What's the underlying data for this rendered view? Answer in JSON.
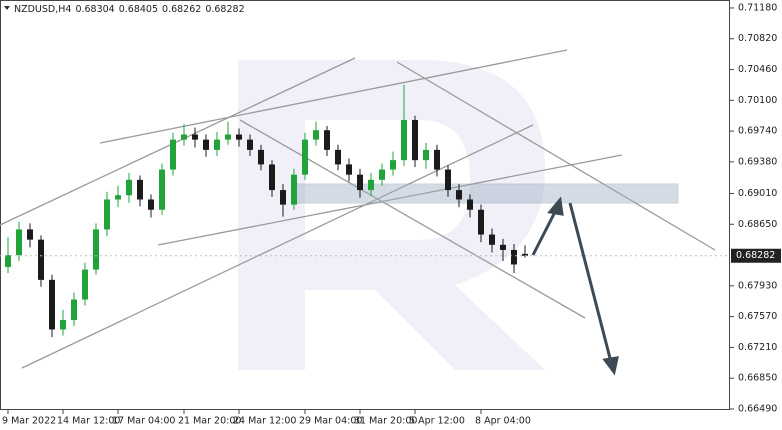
{
  "header": {
    "symbol": "NZDUSD,H4"
  },
  "chart_data": {
    "type": "candlestick",
    "categories": [
      "9 Mar 2022",
      null,
      null,
      null,
      null,
      "14 Mar 12:00",
      null,
      null,
      null,
      null,
      "17 Mar 04:00",
      null,
      null,
      null,
      null,
      null,
      "21 Mar 20:00",
      null,
      null,
      null,
      null,
      "24 Mar 12:00",
      null,
      null,
      null,
      null,
      null,
      "29 Mar 04:00",
      null,
      null,
      null,
      null,
      "31 Mar 20:00",
      null,
      null,
      null,
      null,
      "5 Apr 12:00",
      null,
      null,
      null,
      null,
      null,
      "8 Apr 04:00",
      null,
      null,
      null,
      null
    ],
    "open": [
      0.6815,
      0.6829,
      0.6859,
      0.6847,
      0.68,
      0.6742,
      0.6753,
      0.6777,
      0.6812,
      0.6859,
      0.6894,
      0.6899,
      0.6917,
      0.6894,
      0.6882,
      0.6929,
      0.6964,
      0.697,
      0.6964,
      0.6952,
      0.6964,
      0.697,
      0.6964,
      0.6952,
      0.6935,
      0.6905,
      0.6888,
      0.6923,
      0.6964,
      0.6975,
      0.6952,
      0.6935,
      0.6923,
      0.6905,
      0.6917,
      0.6929,
      0.694,
      0.6987,
      0.694,
      0.6952,
      0.6929,
      0.6905,
      0.6894,
      0.6882,
      0.6853,
      0.6841,
      0.6835,
      0.68304
    ],
    "high": [
      0.685,
      0.6868,
      0.6866,
      0.6852,
      0.6806,
      0.6765,
      0.6785,
      0.682,
      0.6866,
      0.6903,
      0.691,
      0.6925,
      0.6922,
      0.69,
      0.6936,
      0.6972,
      0.6982,
      0.6978,
      0.697,
      0.6973,
      0.6985,
      0.6977,
      0.697,
      0.6958,
      0.694,
      0.6912,
      0.693,
      0.6972,
      0.6985,
      0.698,
      0.6958,
      0.6942,
      0.693,
      0.6925,
      0.6936,
      0.695,
      0.7028,
      0.6992,
      0.696,
      0.6958,
      0.6934,
      0.6912,
      0.69,
      0.6888,
      0.686,
      0.6848,
      0.6842,
      0.68405
    ],
    "low": [
      0.6808,
      0.6822,
      0.6838,
      0.6792,
      0.6733,
      0.6735,
      0.6746,
      0.677,
      0.6806,
      0.6851,
      0.6885,
      0.689,
      0.6886,
      0.6873,
      0.6876,
      0.6922,
      0.6957,
      0.6955,
      0.6944,
      0.6945,
      0.6958,
      0.6956,
      0.6945,
      0.6928,
      0.6897,
      0.6874,
      0.6882,
      0.6917,
      0.6957,
      0.6945,
      0.6928,
      0.6915,
      0.6896,
      0.6898,
      0.691,
      0.6922,
      0.6933,
      0.6932,
      0.693,
      0.6921,
      0.6897,
      0.6885,
      0.6873,
      0.6844,
      0.6832,
      0.6822,
      0.6808,
      0.68262
    ],
    "close": [
      0.6829,
      0.6859,
      0.6847,
      0.68,
      0.6742,
      0.6753,
      0.6777,
      0.6812,
      0.6859,
      0.6894,
      0.6899,
      0.6917,
      0.6894,
      0.6882,
      0.6929,
      0.6964,
      0.697,
      0.6964,
      0.6952,
      0.6964,
      0.697,
      0.6964,
      0.6952,
      0.6935,
      0.6905,
      0.6888,
      0.6923,
      0.6964,
      0.6975,
      0.6952,
      0.6935,
      0.6923,
      0.6905,
      0.6917,
      0.6929,
      0.694,
      0.6987,
      0.694,
      0.6952,
      0.6929,
      0.6905,
      0.6894,
      0.6882,
      0.6853,
      0.6841,
      0.6835,
      0.6818,
      0.68282
    ],
    "up_color": "#22a33a",
    "down_color": "#1b1b1b",
    "ylim": [
      0.66478,
      0.71273
    ],
    "yticks": [
      {
        "value": 0.7118,
        "label": "0.71180"
      },
      {
        "value": 0.7082,
        "label": "0.70820"
      },
      {
        "value": 0.7046,
        "label": "0.70460"
      },
      {
        "value": 0.701,
        "label": "0.70100"
      },
      {
        "value": 0.6974,
        "label": "0.69740"
      },
      {
        "value": 0.6938,
        "label": "0.69380"
      },
      {
        "value": 0.6901,
        "label": "0.69010"
      },
      {
        "value": 0.6865,
        "label": "0.68650"
      },
      {
        "value": 0.6793,
        "label": "0.67930"
      },
      {
        "value": 0.6757,
        "label": "0.67570"
      },
      {
        "value": 0.6721,
        "label": "0.67210"
      },
      {
        "value": 0.6685,
        "label": "0.66850"
      },
      {
        "value": 0.6649,
        "label": "0.66490"
      }
    ]
  }
}
